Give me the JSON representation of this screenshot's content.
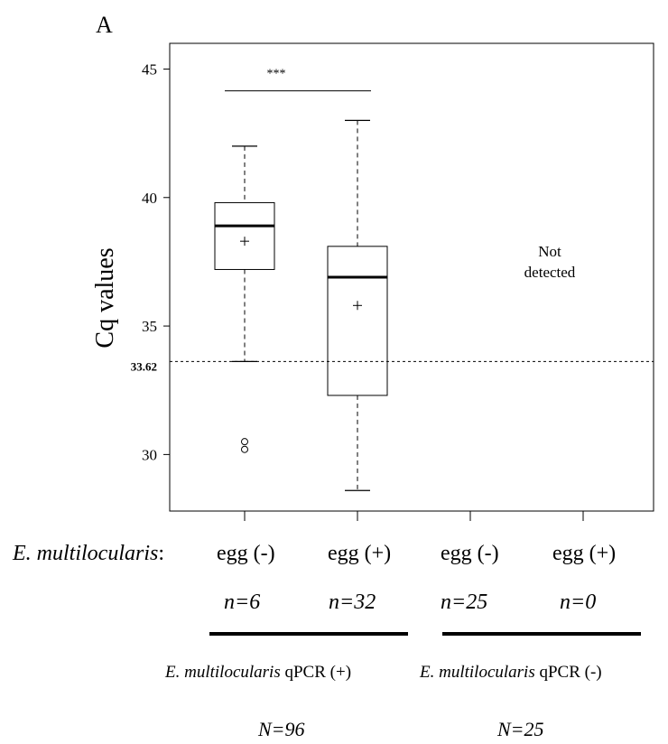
{
  "panel_label": "A",
  "chart_data": {
    "type": "boxplot",
    "ylabel": "Cq values",
    "ylim": [
      27.8,
      46.0
    ],
    "yticks": [
      30,
      35,
      40,
      45
    ],
    "ytick_labels": [
      "30",
      "35",
      "40",
      "45"
    ],
    "threshold": {
      "value": 33.62,
      "label": "33.62"
    },
    "significance": {
      "label": "***",
      "from": 0,
      "to": 1
    },
    "not_detected_label": [
      "Not",
      "detected"
    ],
    "categories": [
      "egg (-)",
      "egg (+)",
      "egg (-)",
      "egg (+)"
    ],
    "boxes": [
      {
        "category": "egg (-)",
        "n": "n=6",
        "whisker_low": 33.62,
        "q1": 37.2,
        "median": 38.9,
        "q3": 39.8,
        "whisker_high": 42.0,
        "mean": 38.3,
        "outliers": [
          30.5,
          30.2
        ]
      },
      {
        "category": "egg (+)",
        "n": "n=32",
        "whisker_low": 28.6,
        "q1": 32.3,
        "median": 36.9,
        "q3": 38.1,
        "whisker_high": 43.0,
        "mean": 35.8,
        "outliers": []
      },
      {
        "category": "egg (-)",
        "n": "n=25"
      },
      {
        "category": "egg (+)",
        "n": "n=0"
      }
    ]
  },
  "x_axis_prefix": "E. multilocularis",
  "x_axis_prefix_suffix": ":",
  "groups": [
    {
      "species": "E. multilocularis",
      "assay": "qPCR (+)",
      "N": "N=96"
    },
    {
      "species": "E. multilocularis",
      "assay": "qPCR (-)",
      "N": "N=25"
    }
  ]
}
